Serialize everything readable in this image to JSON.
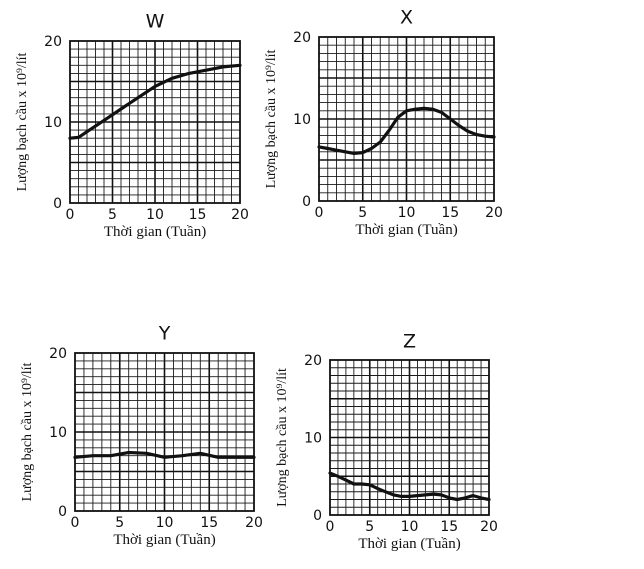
{
  "chart_data": [
    {
      "type": "line",
      "title": "W",
      "xlabel": "Thời gian (Tuần)",
      "ylabel": "Lượng bạch cầu x 10⁹/lít",
      "xlim": [
        0,
        20
      ],
      "ylim": [
        0,
        20
      ],
      "xticks": [
        "0",
        "5",
        "10",
        "15",
        "20"
      ],
      "yticks": [
        "0",
        "10",
        "20"
      ],
      "grid": true,
      "x": [
        0,
        1,
        2,
        4,
        6,
        8,
        10,
        12,
        14,
        16,
        18,
        20
      ],
      "values": [
        8.0,
        8.1,
        8.8,
        10.2,
        11.6,
        13.0,
        14.4,
        15.4,
        16.0,
        16.4,
        16.8,
        17.0
      ]
    },
    {
      "type": "line",
      "title": "X",
      "xlabel": "Thời gian (Tuần)",
      "ylabel": "Lượng bạch cầu x 10⁹/lít",
      "xlim": [
        0,
        20
      ],
      "ylim": [
        0,
        20
      ],
      "xticks": [
        "0",
        "5",
        "10",
        "15",
        "20"
      ],
      "yticks": [
        "0",
        "10",
        "20"
      ],
      "grid": true,
      "x": [
        0,
        1,
        2,
        3,
        4,
        5,
        6,
        7,
        8,
        9,
        10,
        11,
        12,
        13,
        14,
        15,
        16,
        17,
        18,
        19,
        20
      ],
      "values": [
        6.6,
        6.4,
        6.2,
        6.0,
        5.8,
        5.9,
        6.4,
        7.2,
        8.6,
        10.2,
        11.0,
        11.2,
        11.3,
        11.2,
        10.8,
        10.0,
        9.2,
        8.5,
        8.1,
        7.9,
        7.8
      ]
    },
    {
      "type": "line",
      "title": "Y",
      "xlabel": "Thời gian (Tuần)",
      "ylabel": "Lượng bạch cầu x 10⁹/lít",
      "xlim": [
        0,
        20
      ],
      "ylim": [
        0,
        20
      ],
      "xticks": [
        "0",
        "5",
        "10",
        "15",
        "20"
      ],
      "yticks": [
        "0",
        "10",
        "20"
      ],
      "grid": true,
      "x": [
        0,
        2,
        4,
        6,
        8,
        10,
        12,
        14,
        16,
        18,
        20
      ],
      "values": [
        6.8,
        7.0,
        7.0,
        7.4,
        7.3,
        6.8,
        7.0,
        7.3,
        6.8,
        6.8,
        6.8
      ]
    },
    {
      "type": "line",
      "title": "Z",
      "xlabel": "Thời gian (Tuần)",
      "ylabel": "Lượng bạch cầu x 10⁹/lít",
      "xlim": [
        0,
        20
      ],
      "ylim": [
        0,
        20
      ],
      "xticks": [
        "0",
        "5",
        "10",
        "15",
        "20"
      ],
      "yticks": [
        "0",
        "10",
        "20"
      ],
      "grid": true,
      "x": [
        0,
        1,
        2,
        3,
        4,
        5,
        6,
        7,
        8,
        9,
        10,
        11,
        12,
        13,
        14,
        15,
        16,
        17,
        18,
        19,
        20
      ],
      "values": [
        5.4,
        5.0,
        4.5,
        4.0,
        4.0,
        3.9,
        3.4,
        3.0,
        2.6,
        2.4,
        2.4,
        2.5,
        2.6,
        2.7,
        2.6,
        2.2,
        2.0,
        2.2,
        2.5,
        2.2,
        2.0
      ]
    }
  ]
}
